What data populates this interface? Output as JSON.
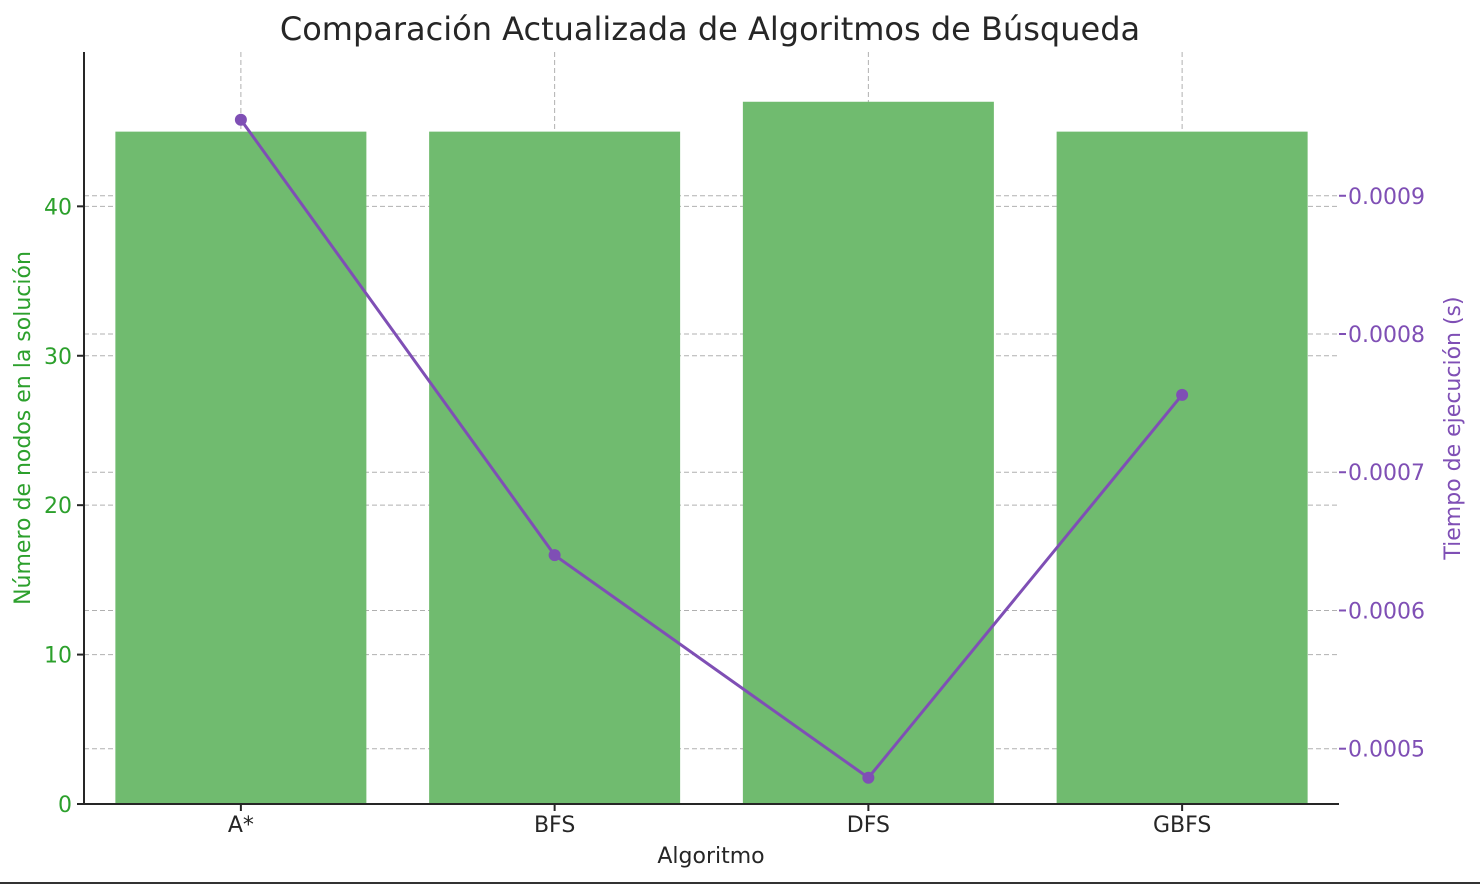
{
  "chart_data": {
    "type": "bar+line",
    "title": "Comparación Actualizada de Algoritmos de Búsqueda",
    "xlabel": "Algoritmo",
    "ylabel_left": "Número de nodos en la solución",
    "ylabel_right": "Tiempo de ejecución (s)",
    "categories": [
      "A*",
      "BFS",
      "DFS",
      "GBFS"
    ],
    "bar_series": {
      "values": [
        45,
        45,
        47,
        45
      ],
      "color": "#70bb6f"
    },
    "line_series": {
      "values": [
        0.000955,
        0.00064,
        0.000479,
        0.000756
      ],
      "color": "#7f4fb5"
    },
    "left_axis": {
      "ylim": [
        0,
        50.33
      ],
      "ticks": [
        0,
        10,
        20,
        30,
        40
      ],
      "tick_labels": [
        "0",
        "10",
        "20",
        "30",
        "40"
      ],
      "color": "#2ca02c"
    },
    "right_axis": {
      "ylim": [
        0.00046,
        0.001004
      ],
      "ticks": [
        0.0005,
        0.0006,
        0.0007,
        0.0008,
        0.0009
      ],
      "tick_labels": [
        "0.0005",
        "0.0006",
        "0.0007",
        "0.0008",
        "0.0009"
      ],
      "color": "#7f4fb5"
    },
    "grid": true
  }
}
